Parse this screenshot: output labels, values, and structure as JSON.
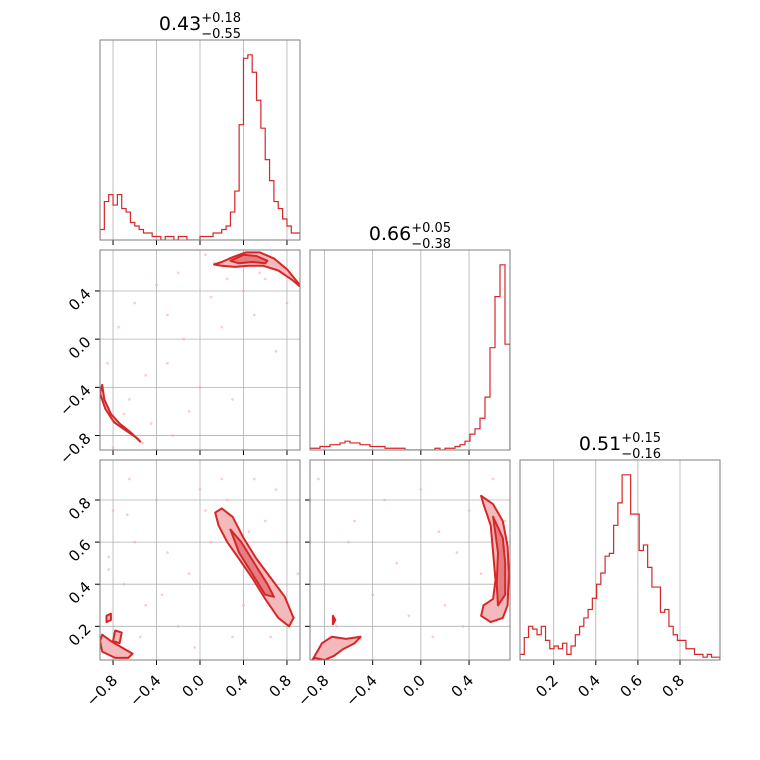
{
  "chart_data": {
    "type": "corner",
    "color": "#d62728",
    "parameters": [
      {
        "median": "0.43",
        "plus": "+0.18",
        "minus": "−0.55",
        "range": [
          -0.92,
          0.92
        ],
        "ticks": [
          -0.8,
          -0.4,
          0.0,
          0.4,
          0.8
        ],
        "ticklabels": [
          "−0.8",
          "−0.4",
          "0.0",
          "0.4",
          "0.8"
        ]
      },
      {
        "median": "0.66",
        "plus": "+0.05",
        "minus": "−0.38",
        "range": [
          -0.92,
          0.74
        ],
        "ticks": [
          -0.8,
          -0.4,
          0.0,
          0.4
        ],
        "ticklabels": [
          "−0.8",
          "−0.4",
          "0.0",
          "0.4"
        ]
      },
      {
        "median": "0.51",
        "plus": "+0.15",
        "minus": "−0.16",
        "range": [
          0.04,
          0.99
        ],
        "ticks": [
          0.2,
          0.4,
          0.6,
          0.8
        ],
        "ticklabels": [
          "0.2",
          "0.4",
          "0.6",
          "0.8"
        ]
      }
    ],
    "histograms": [
      {
        "param": 0,
        "start": -0.92,
        "end": 0.92,
        "counts": [
          3,
          11,
          13,
          10,
          13,
          9,
          8,
          5,
          4,
          3,
          2,
          2,
          1,
          1,
          0,
          1,
          1,
          0,
          1,
          1,
          0,
          0,
          0,
          1,
          1,
          1,
          2,
          2,
          3,
          4,
          8,
          14,
          33,
          52,
          53,
          48,
          40,
          32,
          23,
          17,
          11,
          9,
          6,
          4,
          2,
          2
        ]
      },
      {
        "param": 1,
        "start": -0.92,
        "end": 0.74,
        "counts": [
          1,
          1,
          2,
          2,
          3,
          3,
          4,
          5,
          4,
          4,
          3,
          3,
          2,
          2,
          2,
          1,
          1,
          1,
          1,
          0,
          0,
          0,
          0,
          0,
          0,
          1,
          0,
          1,
          1,
          2,
          3,
          5,
          9,
          12,
          18,
          30,
          58,
          87,
          105,
          60
        ]
      },
      {
        "param": 2,
        "start": 0.04,
        "end": 0.99,
        "counts": [
          2,
          8,
          12,
          11,
          9,
          12,
          7,
          4,
          5,
          4,
          6,
          2,
          5,
          9,
          12,
          15,
          18,
          22,
          27,
          31,
          37,
          38,
          48,
          56,
          66,
          66,
          52,
          52,
          39,
          41,
          33,
          26,
          26,
          17,
          18,
          12,
          9,
          7,
          7,
          4,
          4,
          2,
          2,
          1,
          2,
          1,
          1
        ]
      }
    ],
    "scatter_panels": [
      {
        "x_param": 0,
        "y_param": 1,
        "contours": [
          {
            "level": "outer",
            "points": [
              [
                0.13,
                0.62
              ],
              [
                0.2,
                0.64
              ],
              [
                0.3,
                0.68
              ],
              [
                0.42,
                0.72
              ],
              [
                0.55,
                0.72
              ],
              [
                0.68,
                0.67
              ],
              [
                0.8,
                0.58
              ],
              [
                0.9,
                0.47
              ],
              [
                0.93,
                0.43
              ],
              [
                0.85,
                0.49
              ],
              [
                0.72,
                0.57
              ],
              [
                0.58,
                0.61
              ],
              [
                0.45,
                0.61
              ],
              [
                0.32,
                0.6
              ],
              [
                0.2,
                0.61
              ]
            ]
          },
          {
            "level": "inner",
            "points": [
              [
                0.28,
                0.65
              ],
              [
                0.4,
                0.7
              ],
              [
                0.52,
                0.69
              ],
              [
                0.62,
                0.65
              ],
              [
                0.6,
                0.63
              ],
              [
                0.48,
                0.64
              ],
              [
                0.36,
                0.63
              ]
            ]
          },
          {
            "level": "outer",
            "points": [
              [
                -0.9,
                -0.38
              ],
              [
                -0.88,
                -0.5
              ],
              [
                -0.82,
                -0.62
              ],
              [
                -0.74,
                -0.7
              ],
              [
                -0.63,
                -0.78
              ],
              [
                -0.55,
                -0.85
              ],
              [
                -0.58,
                -0.82
              ],
              [
                -0.68,
                -0.76
              ],
              [
                -0.79,
                -0.69
              ],
              [
                -0.87,
                -0.58
              ],
              [
                -0.92,
                -0.45
              ]
            ]
          }
        ],
        "points": [
          [
            0.13,
            0.63
          ],
          [
            -0.53,
            -0.86
          ],
          [
            -0.7,
            -0.62
          ],
          [
            -0.3,
            -0.2
          ],
          [
            0.1,
            0.35
          ],
          [
            0.5,
            0.2
          ],
          [
            -0.6,
            0.3
          ],
          [
            -0.2,
            0.55
          ],
          [
            0.7,
            -0.1
          ],
          [
            -0.4,
            0.45
          ],
          [
            0.3,
            -0.5
          ],
          [
            -0.75,
            0.1
          ],
          [
            0.6,
            0.5
          ],
          [
            -0.1,
            -0.6
          ],
          [
            0.2,
            0.1
          ],
          [
            -0.5,
            -0.3
          ],
          [
            0.8,
            0.3
          ],
          [
            -0.85,
            -0.2
          ],
          [
            0.4,
            0.4
          ],
          [
            -0.3,
            0.2
          ],
          [
            0.0,
            -0.4
          ],
          [
            -0.65,
            -0.5
          ],
          [
            0.55,
            0.55
          ],
          [
            -0.15,
            0.0
          ],
          [
            0.25,
            0.5
          ],
          [
            -0.45,
            -0.7
          ],
          [
            0.7,
            0.62
          ],
          [
            -0.8,
            -0.9
          ],
          [
            0.05,
            0.7
          ],
          [
            -0.25,
            -0.8
          ]
        ]
      },
      {
        "x_param": 0,
        "y_param": 2,
        "contours": [
          {
            "level": "outer",
            "points": [
              [
                0.14,
                0.74
              ],
              [
                0.2,
                0.76
              ],
              [
                0.3,
                0.72
              ],
              [
                0.4,
                0.62
              ],
              [
                0.52,
                0.52
              ],
              [
                0.65,
                0.43
              ],
              [
                0.78,
                0.34
              ],
              [
                0.86,
                0.24
              ],
              [
                0.82,
                0.2
              ],
              [
                0.72,
                0.24
              ],
              [
                0.6,
                0.33
              ],
              [
                0.48,
                0.43
              ],
              [
                0.36,
                0.52
              ],
              [
                0.25,
                0.6
              ],
              [
                0.17,
                0.68
              ]
            ]
          },
          {
            "level": "inner",
            "points": [
              [
                0.28,
                0.66
              ],
              [
                0.38,
                0.6
              ],
              [
                0.5,
                0.5
              ],
              [
                0.62,
                0.4
              ],
              [
                0.68,
                0.34
              ],
              [
                0.6,
                0.35
              ],
              [
                0.48,
                0.45
              ],
              [
                0.36,
                0.55
              ]
            ]
          },
          {
            "level": "outer",
            "points": [
              [
                -0.9,
                0.16
              ],
              [
                -0.82,
                0.13
              ],
              [
                -0.72,
                0.1
              ],
              [
                -0.62,
                0.07
              ],
              [
                -0.66,
                0.05
              ],
              [
                -0.78,
                0.05
              ],
              [
                -0.9,
                0.08
              ],
              [
                -0.92,
                0.13
              ]
            ]
          },
          {
            "level": "outer",
            "points": [
              [
                -0.86,
                0.25
              ],
              [
                -0.82,
                0.26
              ],
              [
                -0.82,
                0.23
              ],
              [
                -0.86,
                0.22
              ]
            ]
          },
          {
            "level": "outer",
            "points": [
              [
                -0.78,
                0.18
              ],
              [
                -0.72,
                0.17
              ],
              [
                -0.74,
                0.12
              ],
              [
                -0.8,
                0.13
              ]
            ]
          }
        ],
        "points": [
          [
            -0.84,
            0.53
          ],
          [
            -0.84,
            0.47
          ],
          [
            -0.67,
            0.73
          ],
          [
            0.05,
            0.75
          ],
          [
            0.87,
            0.24
          ],
          [
            -0.3,
            0.55
          ],
          [
            0.0,
            0.85
          ],
          [
            -0.5,
            0.3
          ],
          [
            0.2,
            0.9
          ],
          [
            0.6,
            0.7
          ],
          [
            -0.6,
            0.6
          ],
          [
            0.4,
            0.3
          ],
          [
            -0.2,
            0.2
          ],
          [
            0.8,
            0.6
          ],
          [
            -0.4,
            0.8
          ],
          [
            0.3,
            0.15
          ],
          [
            -0.7,
            0.4
          ],
          [
            0.7,
            0.85
          ],
          [
            -0.1,
            0.45
          ],
          [
            0.5,
            0.9
          ],
          [
            -0.55,
            0.15
          ],
          [
            0.1,
            0.6
          ],
          [
            -0.8,
            0.75
          ],
          [
            0.65,
            0.15
          ],
          [
            -0.35,
            0.35
          ],
          [
            0.25,
            0.8
          ],
          [
            0.9,
            0.45
          ],
          [
            -0.65,
            0.9
          ],
          [
            0.45,
            0.65
          ],
          [
            -0.05,
            0.1
          ]
        ]
      },
      {
        "x_param": 1,
        "y_param": 2,
        "contours": [
          {
            "level": "outer",
            "points": [
              [
                0.5,
                0.82
              ],
              [
                0.6,
                0.78
              ],
              [
                0.68,
                0.7
              ],
              [
                0.72,
                0.58
              ],
              [
                0.73,
                0.45
              ],
              [
                0.72,
                0.3
              ],
              [
                0.68,
                0.24
              ],
              [
                0.58,
                0.22
              ],
              [
                0.5,
                0.25
              ],
              [
                0.52,
                0.3
              ],
              [
                0.6,
                0.33
              ],
              [
                0.62,
                0.42
              ],
              [
                0.6,
                0.55
              ],
              [
                0.58,
                0.68
              ],
              [
                0.52,
                0.78
              ]
            ]
          },
          {
            "level": "inner",
            "points": [
              [
                0.6,
                0.72
              ],
              [
                0.68,
                0.62
              ],
              [
                0.7,
                0.5
              ],
              [
                0.7,
                0.35
              ],
              [
                0.64,
                0.3
              ],
              [
                0.63,
                0.4
              ],
              [
                0.64,
                0.55
              ]
            ]
          },
          {
            "level": "outer",
            "points": [
              [
                -0.9,
                0.04
              ],
              [
                -0.82,
                0.12
              ],
              [
                -0.74,
                0.15
              ],
              [
                -0.62,
                0.14
              ],
              [
                -0.5,
                0.15
              ],
              [
                -0.55,
                0.12
              ],
              [
                -0.65,
                0.09
              ],
              [
                -0.72,
                0.06
              ],
              [
                -0.8,
                0.04
              ],
              [
                -0.88,
                0.05
              ]
            ]
          },
          {
            "level": "outer",
            "points": [
              [
                -0.73,
                0.25
              ],
              [
                -0.71,
                0.23
              ],
              [
                -0.73,
                0.21
              ]
            ]
          }
        ],
        "points": [
          [
            -0.5,
            0.14
          ],
          [
            0.7,
            0.7
          ],
          [
            -0.2,
            0.5
          ],
          [
            0.2,
            0.3
          ],
          [
            -0.6,
            0.6
          ],
          [
            0.0,
            0.85
          ],
          [
            -0.4,
            0.35
          ],
          [
            0.4,
            0.75
          ],
          [
            -0.8,
            0.4
          ],
          [
            0.1,
            0.15
          ],
          [
            -0.3,
            0.8
          ],
          [
            0.6,
            0.9
          ],
          [
            -0.7,
            0.2
          ],
          [
            0.3,
            0.55
          ],
          [
            -0.1,
            0.25
          ],
          [
            0.5,
            0.45
          ],
          [
            -0.55,
            0.7
          ],
          [
            0.15,
            0.65
          ],
          [
            -0.85,
            0.9
          ],
          [
            0.35,
            0.2
          ]
        ]
      }
    ]
  }
}
